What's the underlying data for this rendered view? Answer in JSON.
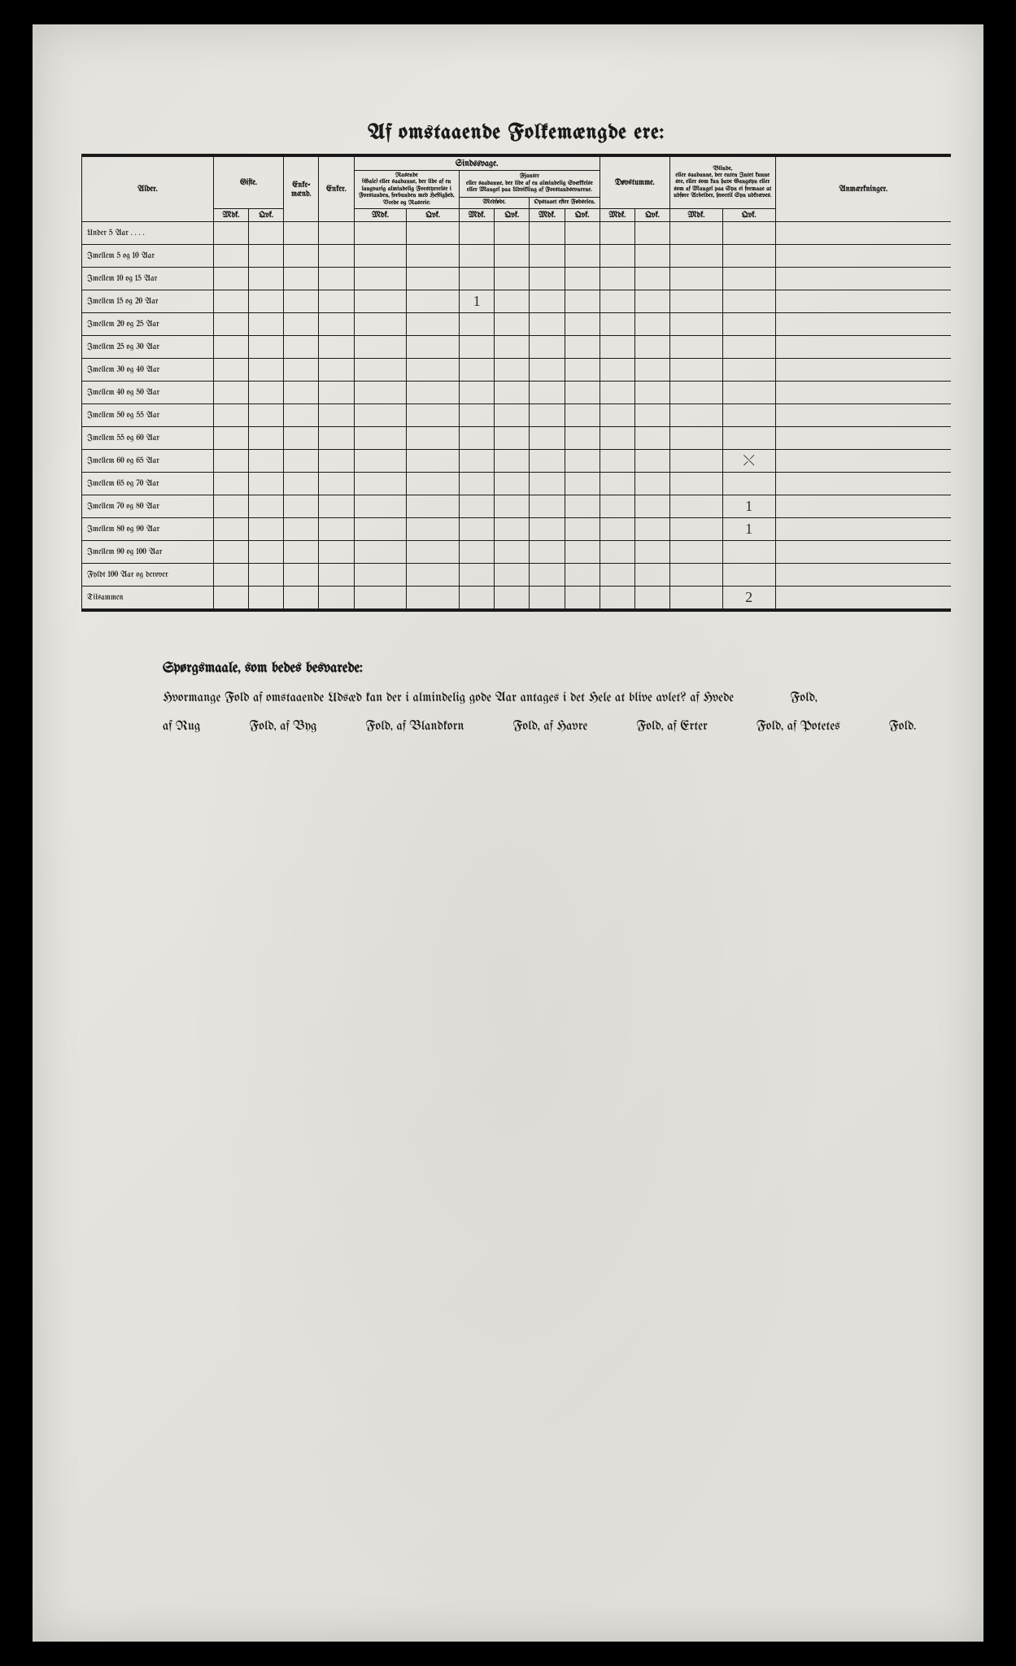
{
  "title": "Af omstaaende Folkemængde ere:",
  "headers": {
    "alder": "Alder.",
    "gifte": "Gifte.",
    "enkemaend": "Enke-\nmænd.",
    "enker": "Enker.",
    "sindssvage": "Sindssvage.",
    "rasende": "Rasende",
    "rasende_desc": "(Gale) eller saadanne, der lide af en langvarig almindelig Forstyrrelse i Forstanden, forbunden med Heftighed, Vrede og Raserie:",
    "fjanter": "Fjanter",
    "fjanter_desc": "eller saadanne, der lide af en almindelig Svækkelse eller Mangel paa Udvikling af Forstandsevnerne.",
    "medfodt": "Medfødt.",
    "opstaaet": "Opstaaet efter Fødselen.",
    "dovstumme": "Døvstumme.",
    "blinde": "Blinde,",
    "blinde_desc": "eller saadanne, der enten Intet kunne see, eller som kun have Gangsyn eller som af Mangel paa Syn ei formaae at udføre Arbeider, hvortil Syn udkræves.",
    "anm": "Anmærkninger.",
    "mdk": "Mdk.",
    "qvk": "Qvk."
  },
  "rows": [
    {
      "label": "Under 5 Aar . . . .",
      "cells": [
        "",
        "",
        "",
        "",
        "",
        "",
        "",
        "",
        "",
        "",
        "",
        "",
        "",
        ""
      ]
    },
    {
      "label": "Imellem 5 og 10 Aar",
      "cells": [
        "",
        "",
        "",
        "",
        "",
        "",
        "",
        "",
        "",
        "",
        "",
        "",
        "",
        ""
      ]
    },
    {
      "label": "Imellem 10 og 15 Aar",
      "cells": [
        "",
        "",
        "",
        "",
        "",
        "",
        "",
        "",
        "",
        "",
        "",
        "",
        "",
        ""
      ]
    },
    {
      "label": "Imellem 15 og 20 Aar",
      "cells": [
        "",
        "",
        "",
        "",
        "",
        "",
        "1",
        "",
        "",
        "",
        "",
        "",
        "",
        ""
      ]
    },
    {
      "label": "Imellem 20 og 25 Aar",
      "cells": [
        "",
        "",
        "",
        "",
        "",
        "",
        "",
        "",
        "",
        "",
        "",
        "",
        "",
        ""
      ]
    },
    {
      "label": "Imellem 25 og 30 Aar",
      "cells": [
        "",
        "",
        "",
        "",
        "",
        "",
        "",
        "",
        "",
        "",
        "",
        "",
        "",
        ""
      ]
    },
    {
      "label": "Imellem 30 og 40 Aar",
      "cells": [
        "",
        "",
        "",
        "",
        "",
        "",
        "",
        "",
        "",
        "",
        "",
        "",
        "",
        ""
      ]
    },
    {
      "label": "Imellem 40 og 50 Aar",
      "cells": [
        "",
        "",
        "",
        "",
        "",
        "",
        "",
        "",
        "",
        "",
        "",
        "",
        "",
        ""
      ]
    },
    {
      "label": "Imellem 50 og 55 Aar",
      "cells": [
        "",
        "",
        "",
        "",
        "",
        "",
        "",
        "",
        "",
        "",
        "",
        "",
        "",
        ""
      ]
    },
    {
      "label": "Imellem 55 og 60 Aar",
      "cells": [
        "",
        "",
        "",
        "",
        "",
        "",
        "",
        "",
        "",
        "",
        "",
        "",
        "",
        ""
      ]
    },
    {
      "label": "Imellem 60 og 65 Aar",
      "cells": [
        "",
        "",
        "",
        "",
        "",
        "",
        "",
        "",
        "",
        "",
        "",
        "",
        "",
        "⤬"
      ]
    },
    {
      "label": "Imellem 65 og 70 Aar",
      "cells": [
        "",
        "",
        "",
        "",
        "",
        "",
        "",
        "",
        "",
        "",
        "",
        "",
        "",
        ""
      ]
    },
    {
      "label": "Imellem 70 og 80 Aar",
      "cells": [
        "",
        "",
        "",
        "",
        "",
        "",
        "",
        "",
        "",
        "",
        "",
        "",
        "",
        "1"
      ]
    },
    {
      "label": "Imellem 80 og 90 Aar",
      "cells": [
        "",
        "",
        "",
        "",
        "",
        "",
        "",
        "",
        "",
        "",
        "",
        "",
        "",
        "1"
      ]
    },
    {
      "label": "Imellem 90 og 100 Aar",
      "cells": [
        "",
        "",
        "",
        "",
        "",
        "",
        "",
        "",
        "",
        "",
        "",
        "",
        "",
        ""
      ]
    },
    {
      "label": "Fyldt 100 Aar og derover",
      "cells": [
        "",
        "",
        "",
        "",
        "",
        "",
        "",
        "",
        "",
        "",
        "",
        "",
        "",
        ""
      ]
    },
    {
      "label": "Tilsammen",
      "cells": [
        "",
        "",
        "",
        "",
        "",
        "",
        "",
        "",
        "",
        "",
        "",
        "",
        "",
        "2"
      ]
    }
  ],
  "questions": {
    "title": "Spørgsmaale, som bedes besvarede:",
    "line1_a": "Hvormange Fold af omstaaende Udsæd kan der i almindelig gode Aar antages i det Hele at blive avlet? af Hvede",
    "line1_b": "Fold,",
    "line2_parts": [
      "af Rug",
      "Fold, af Byg",
      "Fold, af Blandkorn",
      "Fold, af Havre",
      "Fold, af Erter",
      "Fold, af Potetes",
      "Fold."
    ]
  },
  "colors": {
    "paper": "#e8e6e0",
    "ink": "#1a1a1a",
    "frame": "#000000"
  }
}
